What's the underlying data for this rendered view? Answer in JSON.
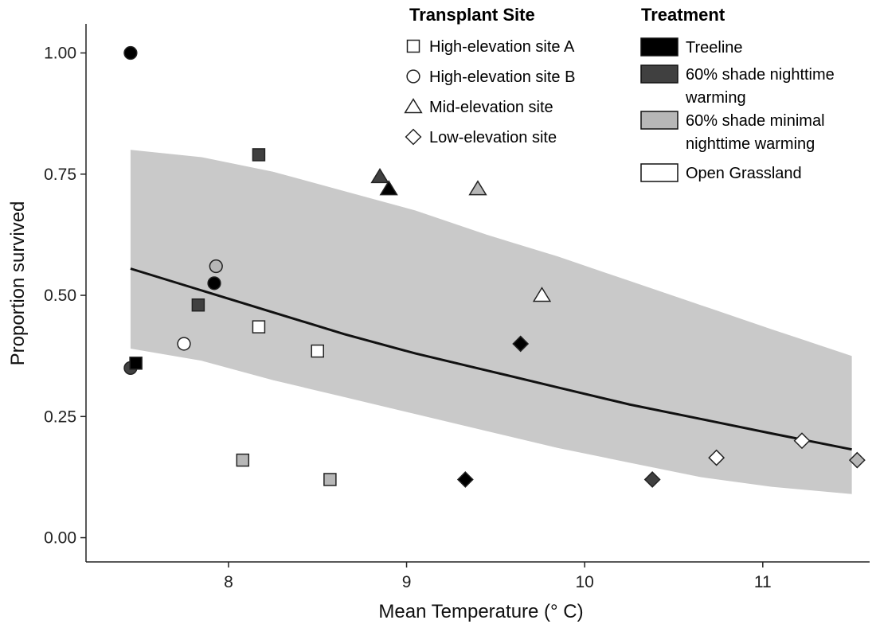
{
  "chart_data": {
    "type": "scatter",
    "xlabel": "Mean Temperature (° C)",
    "ylabel": "Proportion survived",
    "xlim": [
      7.2,
      11.6
    ],
    "ylim": [
      -0.05,
      1.06
    ],
    "x_ticks": [
      "8",
      "9",
      "10",
      "11"
    ],
    "x_tick_values": [
      8,
      9,
      10,
      11
    ],
    "y_ticks": [
      "0.00",
      "0.25",
      "0.50",
      "0.75",
      "1.00"
    ],
    "y_tick_values": [
      0,
      0.25,
      0.5,
      0.75,
      1.0
    ],
    "grid": false,
    "legend_placement": "top-right",
    "legend": {
      "site": {
        "title": "Transplant Site",
        "entries": [
          {
            "label": "High-elevation site A",
            "shape": "square"
          },
          {
            "label": "High-elevation site B",
            "shape": "circle"
          },
          {
            "label": "Mid-elevation site",
            "shape": "triangle"
          },
          {
            "label": "Low-elevation site",
            "shape": "diamond"
          }
        ]
      },
      "treatment": {
        "title": "Treatment",
        "entries": [
          {
            "label_lines": [
              "Treeline"
            ],
            "color": "#000000"
          },
          {
            "label_lines": [
              "60% shade nighttime",
              "warming"
            ],
            "color": "#404040"
          },
          {
            "label_lines": [
              "60% shade minimal",
              "nighttime warming"
            ],
            "color": "#b7b7b7"
          },
          {
            "label_lines": [
              "Open Grassland"
            ],
            "color": "#ffffff"
          }
        ]
      }
    },
    "fit_line": {
      "x": [
        7.45,
        7.85,
        8.25,
        8.65,
        9.05,
        9.45,
        9.85,
        10.25,
        10.65,
        11.05,
        11.5
      ],
      "y": [
        0.555,
        0.51,
        0.465,
        0.42,
        0.38,
        0.345,
        0.31,
        0.275,
        0.245,
        0.215,
        0.182
      ]
    },
    "confidence_band": {
      "x": [
        7.45,
        7.85,
        8.25,
        8.65,
        9.05,
        9.45,
        9.85,
        10.25,
        10.65,
        11.05,
        11.5
      ],
      "upper": [
        0.8,
        0.785,
        0.755,
        0.715,
        0.675,
        0.625,
        0.58,
        0.53,
        0.48,
        0.43,
        0.375
      ],
      "lower": [
        0.39,
        0.365,
        0.325,
        0.29,
        0.255,
        0.22,
        0.185,
        0.155,
        0.125,
        0.105,
        0.09
      ]
    },
    "points": [
      {
        "x": 7.45,
        "y": 1.0,
        "site": "High-elevation site B",
        "treatment": "Treeline"
      },
      {
        "x": 7.45,
        "y": 0.35,
        "site": "High-elevation site B",
        "treatment": "60% shade nighttime warming"
      },
      {
        "x": 7.48,
        "y": 0.36,
        "site": "High-elevation site A",
        "treatment": "Treeline"
      },
      {
        "x": 7.75,
        "y": 0.4,
        "site": "High-elevation site B",
        "treatment": "Open Grassland"
      },
      {
        "x": 7.83,
        "y": 0.48,
        "site": "High-elevation site A",
        "treatment": "60% shade nighttime warming"
      },
      {
        "x": 7.92,
        "y": 0.525,
        "site": "High-elevation site B",
        "treatment": "Treeline"
      },
      {
        "x": 7.93,
        "y": 0.56,
        "site": "High-elevation site B",
        "treatment": "60% shade minimal nighttime warming"
      },
      {
        "x": 8.08,
        "y": 0.16,
        "site": "High-elevation site A",
        "treatment": "60% shade minimal nighttime warming"
      },
      {
        "x": 8.17,
        "y": 0.79,
        "site": "High-elevation site A",
        "treatment": "60% shade nighttime warming"
      },
      {
        "x": 8.17,
        "y": 0.435,
        "site": "High-elevation site A",
        "treatment": "Open Grassland"
      },
      {
        "x": 8.5,
        "y": 0.385,
        "site": "High-elevation site A",
        "treatment": "Open Grassland"
      },
      {
        "x": 8.57,
        "y": 0.12,
        "site": "High-elevation site A",
        "treatment": "60% shade minimal nighttime warming"
      },
      {
        "x": 8.85,
        "y": 0.745,
        "site": "Mid-elevation site",
        "treatment": "60% shade nighttime warming"
      },
      {
        "x": 8.9,
        "y": 0.72,
        "site": "Mid-elevation site",
        "treatment": "Treeline"
      },
      {
        "x": 9.33,
        "y": 0.12,
        "site": "Low-elevation site",
        "treatment": "Treeline"
      },
      {
        "x": 9.4,
        "y": 0.72,
        "site": "Mid-elevation site",
        "treatment": "60% shade minimal nighttime warming"
      },
      {
        "x": 9.64,
        "y": 0.4,
        "site": "Low-elevation site",
        "treatment": "Treeline"
      },
      {
        "x": 9.76,
        "y": 0.5,
        "site": "Mid-elevation site",
        "treatment": "Open Grassland"
      },
      {
        "x": 10.38,
        "y": 0.12,
        "site": "Low-elevation site",
        "treatment": "60% shade nighttime warming"
      },
      {
        "x": 10.74,
        "y": 0.165,
        "site": "Low-elevation site",
        "treatment": "Open Grassland"
      },
      {
        "x": 11.22,
        "y": 0.2,
        "site": "Low-elevation site",
        "treatment": "Open Grassland"
      },
      {
        "x": 11.53,
        "y": 0.16,
        "site": "Low-elevation site",
        "treatment": "60% shade minimal nighttime warming"
      }
    ]
  }
}
